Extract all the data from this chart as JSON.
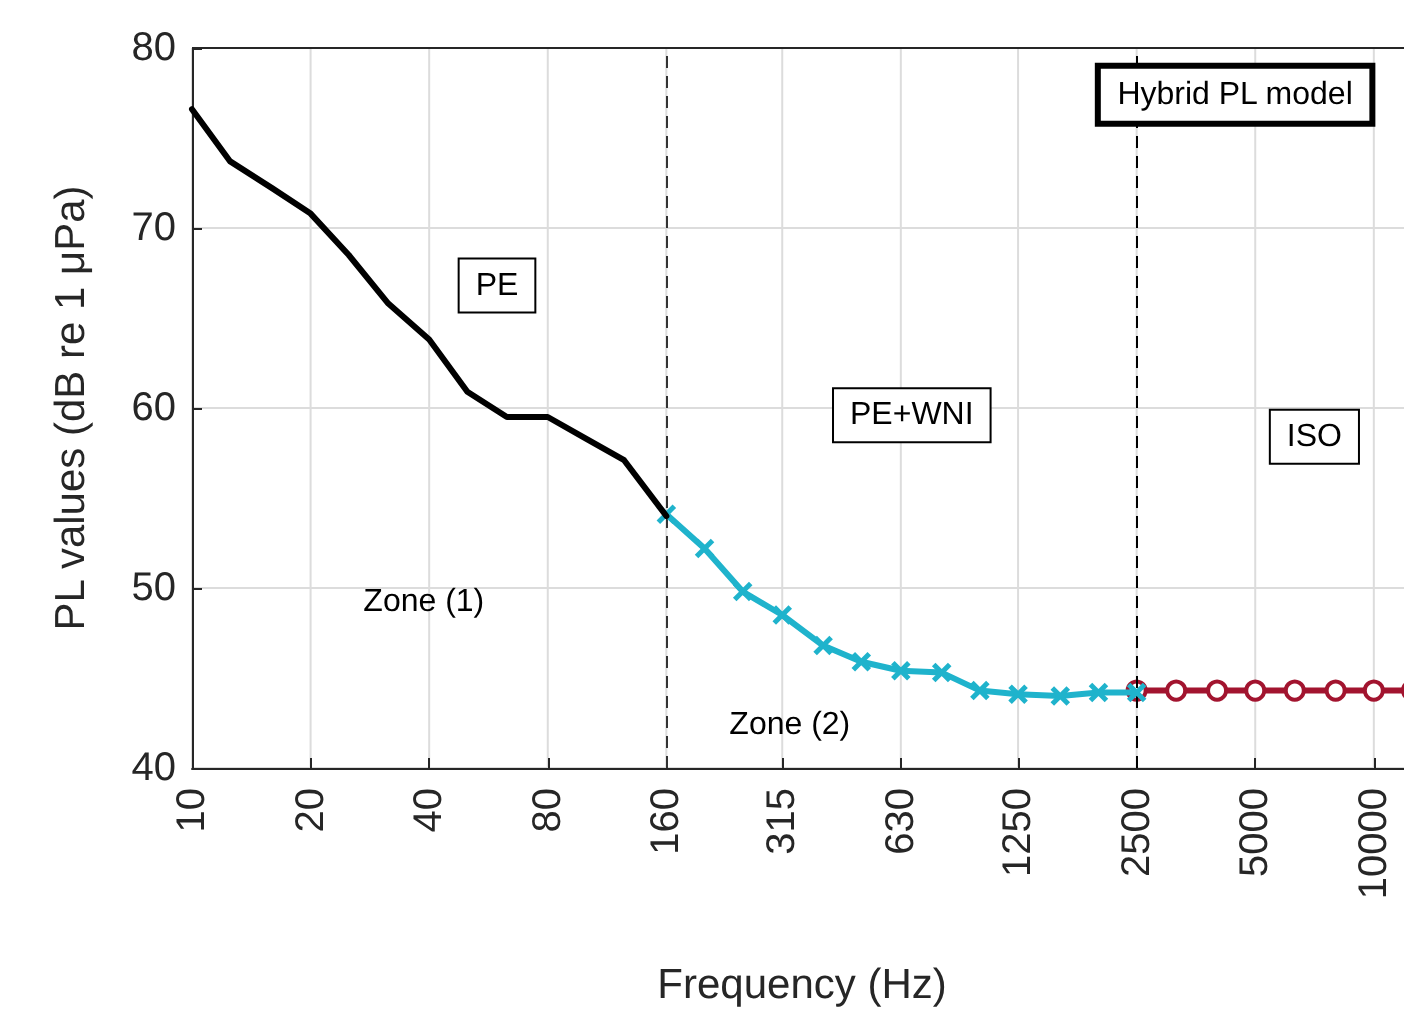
{
  "chart_data": {
    "type": "line",
    "xlabel": "Frequency (Hz)",
    "ylabel": "PL values (dB re 1 μPa)",
    "log": "x",
    "grid": true,
    "line_style": "solid",
    "xlim": [
      10,
      12500
    ],
    "xticks": [
      10,
      20,
      40,
      80,
      160,
      315,
      630,
      1250,
      2500,
      5000,
      10000
    ],
    "ylim": [
      40,
      80
    ],
    "yticks": [
      40,
      50,
      60,
      70,
      80
    ],
    "series": [
      {
        "color": "#000000",
        "marker": "none",
        "x": [
          10,
          12.5,
          16,
          20,
          25,
          31.5,
          40,
          50,
          63,
          80,
          100,
          125,
          160
        ],
        "values": [
          76.6,
          73.7,
          72.2,
          70.8,
          68.5,
          65.8,
          63.8,
          60.9,
          59.5,
          59.5,
          58.3,
          57.1,
          54.0
        ]
      },
      {
        "color": "#1fb3cc",
        "marker": "cross",
        "x": [
          160,
          200,
          250,
          315,
          400,
          500,
          630,
          800,
          1000,
          1250,
          1600,
          2000,
          2500
        ],
        "values": [
          54.1,
          52.2,
          49.8,
          48.5,
          46.8,
          45.9,
          45.4,
          45.3,
          44.3,
          44.1,
          44.0,
          44.2,
          44.2
        ]
      },
      {
        "color": "#a2142f",
        "marker": "circle",
        "x": [
          2500,
          3150,
          4000,
          5000,
          6300,
          8000,
          10000,
          12500
        ],
        "values": [
          44.3,
          44.3,
          44.3,
          44.3,
          44.3,
          44.3,
          44.3,
          44.3
        ]
      }
    ],
    "ref_lines": [
      {
        "axis": "x",
        "value": 160,
        "line_style": "dashed",
        "color": "#333333"
      },
      {
        "axis": "x",
        "value": 2500,
        "line_style": "dashed",
        "color": "#000000"
      }
    ],
    "annotations": [
      "PE",
      "PE+WNI",
      "ISO",
      "Zone (1)",
      "Zone (2)",
      "Hybrid PL model"
    ]
  }
}
